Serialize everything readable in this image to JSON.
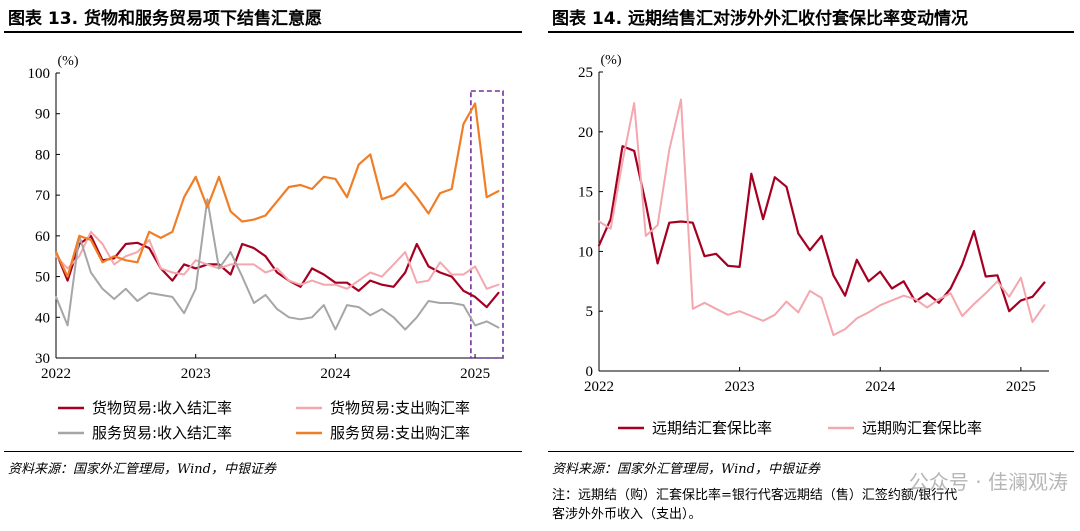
{
  "left": {
    "title": "图表 13. 货物和服务贸易项下结售汇意愿",
    "source": "资料来源：国家外汇管理局，Wind，中银证券",
    "highlight_box": {
      "x_from": 2024.97,
      "x_to": 2025.2,
      "color": "#7030a0"
    }
  },
  "right": {
    "title": "图表 14. 远期结售汇对涉外外汇收付套保比率变动情况",
    "source": "资料来源：国家外汇管理局，Wind，中银证券",
    "note_lines": [
      "注：远期结（购）汇套保比率=银行代客远期结（售）汇签约额/银行代",
      "客涉外外币收入（支出）。"
    ]
  },
  "watermark": "公众号 · 佳澜观涛",
  "chart_data": [
    {
      "type": "line",
      "ylabel": "(%)",
      "ylim": [
        30,
        100
      ],
      "yticks": [
        30,
        40,
        50,
        60,
        70,
        80,
        90,
        100
      ],
      "xlim": [
        2022.0,
        2025.2
      ],
      "xticks": [
        2022,
        2023,
        2024,
        2025
      ],
      "xtick_labels": [
        "2022",
        "2023",
        "2024",
        "2025"
      ],
      "legend_position": "bottom",
      "grid": false,
      "x": [
        2022.0,
        2022.083,
        2022.167,
        2022.25,
        2022.333,
        2022.417,
        2022.5,
        2022.583,
        2022.667,
        2022.75,
        2022.833,
        2022.917,
        2023.0,
        2023.083,
        2023.167,
        2023.25,
        2023.333,
        2023.417,
        2023.5,
        2023.583,
        2023.667,
        2023.75,
        2023.833,
        2023.917,
        2024.0,
        2024.083,
        2024.167,
        2024.25,
        2024.333,
        2024.417,
        2024.5,
        2024.583,
        2024.667,
        2024.75,
        2024.833,
        2024.917,
        2025.0,
        2025.083,
        2025.167
      ],
      "series": [
        {
          "name": "货物贸易:收入结汇率",
          "color": "#a50021",
          "width": 2.2,
          "values": [
            56,
            49,
            58,
            60,
            54,
            54.5,
            58,
            58.3,
            57,
            52,
            49,
            53,
            52,
            53,
            53,
            50.5,
            58,
            57,
            55,
            51,
            49,
            47.5,
            52,
            50.5,
            48.5,
            48.5,
            46.5,
            49,
            48,
            47.5,
            51,
            58,
            52.5,
            51,
            50,
            46.5,
            45,
            42.5,
            46
          ]
        },
        {
          "name": "货物贸易:支出购汇率",
          "color": "#f4a7ae",
          "width": 2.0,
          "values": [
            55,
            52,
            55,
            61,
            58,
            53,
            55,
            56,
            59,
            52,
            51,
            50.5,
            54,
            53,
            52,
            53,
            53,
            53,
            51,
            52,
            49,
            48,
            49,
            48,
            48,
            47,
            49,
            51,
            50,
            53,
            56,
            48.5,
            49,
            53.5,
            50.5,
            50.5,
            52.5,
            47,
            48
          ]
        },
        {
          "name": "服务贸易:收入结汇率",
          "color": "#a6a6a6",
          "width": 2.0,
          "values": [
            45,
            38,
            60,
            51,
            47,
            44.5,
            47,
            44,
            46,
            45.5,
            45,
            41,
            47,
            69,
            52,
            56,
            50,
            43.5,
            45.5,
            42,
            40,
            39.5,
            40,
            43,
            37,
            43,
            42.5,
            40.5,
            42,
            40,
            37,
            40,
            44,
            43.5,
            43.5,
            43,
            38,
            39,
            37.5
          ]
        },
        {
          "name": "服务贸易:支出购汇率",
          "color": "#f07e26",
          "width": 2.2,
          "values": [
            56,
            50,
            60,
            59,
            53.5,
            55,
            54,
            53.5,
            61,
            59.5,
            61,
            69.5,
            74.5,
            67,
            74.5,
            66,
            63.5,
            64,
            65,
            68.5,
            72,
            72.5,
            71.5,
            74.5,
            74,
            69.5,
            77.5,
            80,
            69,
            70,
            73,
            69.5,
            65.5,
            70.5,
            71.5,
            87.5,
            92.5,
            69.5,
            71
          ]
        }
      ]
    },
    {
      "type": "line",
      "ylabel": "(%)",
      "ylim": [
        0,
        25
      ],
      "yticks": [
        0,
        5,
        10,
        15,
        20,
        25
      ],
      "xlim": [
        2022.0,
        2025.2
      ],
      "xticks": [
        2022,
        2023,
        2024,
        2025
      ],
      "xtick_labels": [
        "2022",
        "2023",
        "2024",
        "2025"
      ],
      "legend_position": "bottom",
      "grid": false,
      "x": [
        2022.0,
        2022.083,
        2022.167,
        2022.25,
        2022.333,
        2022.417,
        2022.5,
        2022.583,
        2022.667,
        2022.75,
        2022.833,
        2022.917,
        2023.0,
        2023.083,
        2023.167,
        2023.25,
        2023.333,
        2023.417,
        2023.5,
        2023.583,
        2023.667,
        2023.75,
        2023.833,
        2023.917,
        2024.0,
        2024.083,
        2024.167,
        2024.25,
        2024.333,
        2024.417,
        2024.5,
        2024.583,
        2024.667,
        2024.75,
        2024.833,
        2024.917,
        2025.0,
        2025.083,
        2025.167
      ],
      "series": [
        {
          "name": "远期结汇套保比率",
          "color": "#a50021",
          "width": 2.2,
          "values": [
            10.5,
            12.7,
            18.8,
            18.4,
            14,
            9.0,
            12.4,
            12.5,
            12.4,
            9.6,
            9.8,
            8.8,
            8.7,
            16.5,
            12.7,
            16.2,
            15.4,
            11.5,
            10.1,
            11.3,
            8.0,
            6.3,
            9.3,
            7.5,
            8.3,
            6.9,
            7.5,
            5.8,
            6.5,
            5.7,
            6.9,
            8.9,
            11.7,
            7.9,
            8.0,
            5.0,
            5.9,
            6.2,
            7.4
          ]
        },
        {
          "name": "远期购汇套保比率",
          "color": "#f4a7ae",
          "width": 2.0,
          "values": [
            12.5,
            11.9,
            17.5,
            22.4,
            11.3,
            12.2,
            18.5,
            22.7,
            5.2,
            5.7,
            5.2,
            4.7,
            5.0,
            4.6,
            4.2,
            4.7,
            5.8,
            4.9,
            6.7,
            6.1,
            3.0,
            3.5,
            4.4,
            4.9,
            5.5,
            5.9,
            6.3,
            6.0,
            5.3,
            6.0,
            6.5,
            4.6,
            5.6,
            6.5,
            7.5,
            6.2,
            7.8,
            4.1,
            5.5
          ]
        }
      ]
    }
  ]
}
